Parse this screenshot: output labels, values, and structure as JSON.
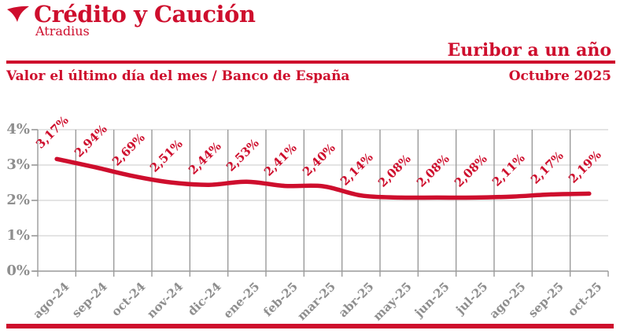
{
  "brand": {
    "logo_title": "Crédito y Caución",
    "logo_subtitle": "Atradius"
  },
  "header": {
    "title": "Euribor a un año",
    "subtitle_left": "Valor el último día del mes / Banco de España",
    "subtitle_right": "Octubre 2025"
  },
  "colors": {
    "red": "#CE0E2D",
    "gray_text": "#8E8E8E",
    "grid_vertical": "#9A9A9A",
    "grid_horizontal": "#D4D4D4"
  },
  "chart_data": {
    "type": "line",
    "title": "Euribor a un año",
    "subtitle": "Valor el último día del mes / Banco de España",
    "period": "Octubre 2025",
    "categories": [
      "ago-24",
      "sep-24",
      "oct-24",
      "nov-24",
      "dic-24",
      "ene-25",
      "feb-25",
      "mar-25",
      "abr-25",
      "may-25",
      "jun-25",
      "jul-25",
      "ago-25",
      "sep-25",
      "oct-25"
    ],
    "values": [
      3.17,
      2.94,
      2.69,
      2.51,
      2.44,
      2.53,
      2.41,
      2.4,
      2.14,
      2.08,
      2.08,
      2.08,
      2.11,
      2.17,
      2.19
    ],
    "point_labels": [
      "3,17%",
      "2,94%",
      "2,69%",
      "2,51%",
      "2,44%",
      "2,53%",
      "2,41%",
      "2,40%",
      "2,14%",
      "2,08%",
      "2,08%",
      "2,08%",
      "2,11%",
      "2,17%",
      "2,19%"
    ],
    "xlabel": "",
    "ylabel": "",
    "ylim": [
      0,
      4
    ],
    "ytick_labels": [
      "0%",
      "1%",
      "2%",
      "3%",
      "4%"
    ],
    "grid": true,
    "legend": false,
    "line_color": "#CE0E2D"
  }
}
